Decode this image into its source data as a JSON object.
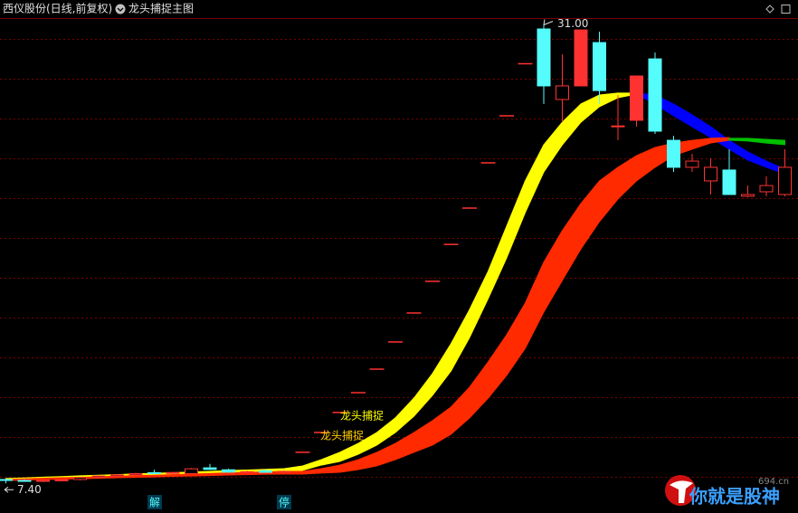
{
  "header": {
    "title": "西仪股份(日线,前复权)",
    "indicator": "龙头捕捉主图"
  },
  "chart_data": {
    "type": "candlestick",
    "ylim": [
      6.9,
      31.35
    ],
    "up_color": "#ff3232",
    "down_color": "#54fcfc",
    "open": [
      7.6,
      7.55,
      7.52,
      7.55,
      7.6,
      7.72,
      7.78,
      7.84,
      7.95,
      7.92,
      7.9,
      8.2,
      8.1,
      7.98,
      8.05,
      7.97,
      9.0,
      10.02,
      11.05,
      12.07,
      13.28,
      14.68,
      16.17,
      17.8,
      19.7,
      21.57,
      23.9,
      26.32,
      29.0,
      30.79,
      27.16,
      27.86,
      30.09,
      25.76,
      26.09,
      29.25,
      25.06,
      23.67,
      22.97,
      23.53,
      22.18,
      22.41,
      22.27
    ],
    "high": [
      7.62,
      7.6,
      7.58,
      7.62,
      7.72,
      7.8,
      7.88,
      7.95,
      8.1,
      8.0,
      8.2,
      8.4,
      8.15,
      8.05,
      8.12,
      8.05,
      9.0,
      10.02,
      11.05,
      12.07,
      13.28,
      14.68,
      16.17,
      17.8,
      19.7,
      21.57,
      23.9,
      26.32,
      29.0,
      31.0,
      29.49,
      30.74,
      30.65,
      27.39,
      28.37,
      29.58,
      25.29,
      24.36,
      24.13,
      24.6,
      22.73,
      23.2,
      24.6
    ],
    "low": [
      7.4,
      7.48,
      7.47,
      7.5,
      7.56,
      7.65,
      7.72,
      7.8,
      7.88,
      7.85,
      7.86,
      8.1,
      7.95,
      7.92,
      7.95,
      7.94,
      9.0,
      10.02,
      11.05,
      12.07,
      13.28,
      14.68,
      16.17,
      17.8,
      19.7,
      21.57,
      23.9,
      26.32,
      29.0,
      26.93,
      25.99,
      27.86,
      26.93,
      25.06,
      25.76,
      25.39,
      23.43,
      23.43,
      22.27,
      22.27,
      22.13,
      22.18,
      22.18
    ],
    "close": [
      7.55,
      7.52,
      7.55,
      7.58,
      7.7,
      7.78,
      7.84,
      7.9,
      7.92,
      7.96,
      8.15,
      8.12,
      7.98,
      8.0,
      7.97,
      8.02,
      9.0,
      10.02,
      11.05,
      12.07,
      13.28,
      14.68,
      16.17,
      17.8,
      19.7,
      21.57,
      23.9,
      26.32,
      29.0,
      27.86,
      27.86,
      30.74,
      27.62,
      25.8,
      28.37,
      25.53,
      23.67,
      23.99,
      23.67,
      22.27,
      22.27,
      22.73,
      23.67
    ],
    "bands": [
      {
        "label": "龙头捕捉",
        "color": "#ffff00",
        "top": [
          7.65,
          7.68,
          7.72,
          7.75,
          7.79,
          7.82,
          7.85,
          7.89,
          7.92,
          7.95,
          7.99,
          8.02,
          8.06,
          8.09,
          8.12,
          8.16,
          8.3,
          8.62,
          9.0,
          9.46,
          10.02,
          10.77,
          11.79,
          13.05,
          14.59,
          16.35,
          18.31,
          20.64,
          22.97,
          24.83,
          25.99,
          26.93,
          27.39,
          27.49,
          27.49,
          null,
          null,
          null,
          null,
          null,
          null,
          null,
          null
        ],
        "bottom": [
          7.55,
          7.58,
          7.61,
          7.63,
          7.66,
          7.69,
          7.72,
          7.75,
          7.77,
          7.8,
          7.83,
          7.86,
          7.89,
          7.91,
          7.94,
          7.97,
          8.07,
          8.34,
          8.53,
          8.9,
          9.37,
          10.02,
          10.86,
          11.93,
          13.19,
          14.91,
          16.91,
          19.01,
          21.34,
          23.43,
          24.83,
          25.99,
          26.79,
          27.25,
          27.44,
          null,
          null,
          null,
          null,
          null,
          null,
          null,
          null
        ]
      },
      {
        "color": "#0000ff",
        "top": [
          null,
          null,
          null,
          null,
          null,
          null,
          null,
          null,
          null,
          null,
          null,
          null,
          null,
          null,
          null,
          null,
          null,
          null,
          null,
          null,
          null,
          null,
          null,
          null,
          null,
          null,
          null,
          null,
          null,
          null,
          null,
          null,
          null,
          null,
          27.49,
          27.39,
          26.93,
          26.37,
          25.76,
          25.06,
          24.46,
          23.99,
          23.57
        ],
        "bottom": [
          null,
          null,
          null,
          null,
          null,
          null,
          null,
          null,
          null,
          null,
          null,
          null,
          null,
          null,
          null,
          null,
          null,
          null,
          null,
          null,
          null,
          null,
          null,
          null,
          null,
          null,
          null,
          null,
          null,
          null,
          null,
          null,
          null,
          null,
          27.44,
          26.93,
          26.32,
          25.76,
          25.2,
          24.6,
          24.04,
          23.67,
          23.34
        ]
      },
      {
        "label": "龙头捕捉",
        "color": "#ff2a00",
        "top": [
          7.6,
          7.63,
          7.66,
          7.69,
          7.71,
          7.74,
          7.77,
          7.8,
          7.82,
          7.85,
          7.88,
          7.91,
          7.94,
          7.96,
          7.99,
          8.02,
          8.02,
          8.16,
          8.34,
          8.62,
          9.0,
          9.46,
          10.02,
          10.63,
          11.33,
          12.35,
          13.65,
          15.05,
          16.68,
          18.78,
          20.41,
          21.8,
          22.97,
          23.67,
          24.27,
          24.69,
          24.92,
          25.06,
          25.16,
          25.2,
          null,
          null,
          null
        ],
        "bottom": [
          7.55,
          7.57,
          7.6,
          7.62,
          7.64,
          7.66,
          7.69,
          7.71,
          7.73,
          7.76,
          7.78,
          7.8,
          7.83,
          7.85,
          7.87,
          7.88,
          7.88,
          7.93,
          7.97,
          8.11,
          8.3,
          8.62,
          9.0,
          9.37,
          9.93,
          10.77,
          11.79,
          12.96,
          14.35,
          16.22,
          17.85,
          19.47,
          20.87,
          22.04,
          22.97,
          23.67,
          24.27,
          24.6,
          24.92,
          25.06,
          null,
          null,
          null
        ]
      },
      {
        "color": "#00c000",
        "top": [
          null,
          null,
          null,
          null,
          null,
          null,
          null,
          null,
          null,
          null,
          null,
          null,
          null,
          null,
          null,
          null,
          null,
          null,
          null,
          null,
          null,
          null,
          null,
          null,
          null,
          null,
          null,
          null,
          null,
          null,
          null,
          null,
          null,
          null,
          null,
          null,
          null,
          null,
          null,
          25.16,
          25.16,
          25.11,
          25.06
        ],
        "bottom": [
          null,
          null,
          null,
          null,
          null,
          null,
          null,
          null,
          null,
          null,
          null,
          null,
          null,
          null,
          null,
          null,
          null,
          null,
          null,
          null,
          null,
          null,
          null,
          null,
          null,
          null,
          null,
          null,
          null,
          null,
          null,
          null,
          null,
          null,
          null,
          null,
          null,
          null,
          null,
          25.06,
          25.02,
          24.92,
          24.83
        ]
      }
    ],
    "annotations": [
      {
        "value": 31,
        "label": "31.00"
      },
      {
        "value": 7.4,
        "label": "7.40"
      }
    ],
    "markers": [
      "解",
      "停"
    ]
  },
  "watermark": {
    "text": "你就是股神",
    "site": "694.cn"
  }
}
